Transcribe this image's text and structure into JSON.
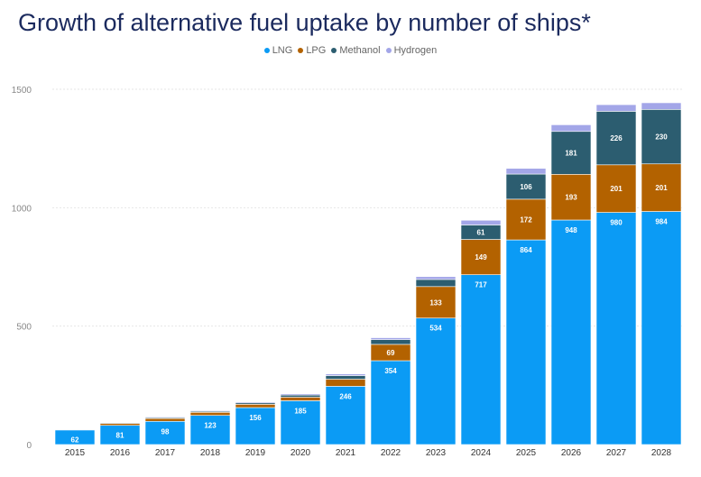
{
  "title": "Growth of alternative fuel uptake by number of ships*",
  "colors": {
    "LNG": "#0b9bf5",
    "LPG": "#b36200",
    "Methanol": "#2c5d70",
    "Hydrogen": "#a3a6e8"
  },
  "chart_data": {
    "type": "bar",
    "stacked": true,
    "title": "Growth of alternative fuel uptake by number of ships*",
    "categories": [
      "2015",
      "2016",
      "2017",
      "2018",
      "2019",
      "2020",
      "2021",
      "2022",
      "2023",
      "2024",
      "2025",
      "2026",
      "2027",
      "2028"
    ],
    "ylim": [
      0,
      1500
    ],
    "yticks": [
      0,
      500,
      1000,
      1500
    ],
    "grid": true,
    "legend": "top-center",
    "series": [
      {
        "name": "LNG",
        "values": [
          62,
          81,
          98,
          123,
          156,
          185,
          246,
          354,
          534,
          717,
          864,
          948,
          980,
          984
        ],
        "labels": [
          "62",
          "81",
          "98",
          "123",
          "156",
          "185",
          "246",
          "354",
          "534",
          "717",
          "864",
          "948",
          "980",
          "984"
        ]
      },
      {
        "name": "LPG",
        "values": [
          1,
          8,
          12,
          13,
          14,
          15,
          30,
          69,
          133,
          149,
          172,
          193,
          201,
          201
        ],
        "labels": [
          "",
          "",
          "",
          "",
          "",
          "",
          "",
          "69",
          "133",
          "149",
          "172",
          "193",
          "201",
          "201"
        ]
      },
      {
        "name": "Methanol",
        "values": [
          0,
          3,
          4,
          4,
          6,
          9,
          15,
          20,
          30,
          61,
          106,
          181,
          226,
          230
        ],
        "labels": [
          "",
          "",
          "",
          "",
          "",
          "",
          "",
          "",
          "",
          "61",
          "106",
          "181",
          "226",
          "230"
        ]
      },
      {
        "name": "Hydrogen",
        "values": [
          0,
          2,
          3,
          3,
          4,
          5,
          7,
          8,
          12,
          20,
          24,
          28,
          28,
          28
        ],
        "labels": [
          "",
          "",
          "",
          "",
          "",
          "",
          "",
          "",
          "",
          "",
          "",
          "",
          "",
          ""
        ]
      }
    ]
  }
}
